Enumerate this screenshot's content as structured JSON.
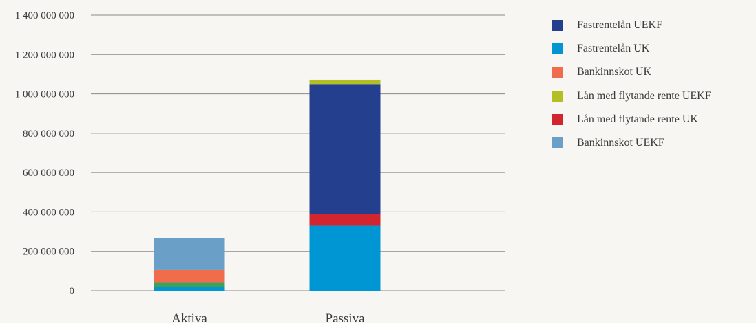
{
  "chart_data": {
    "type": "bar",
    "stacked": true,
    "categories": [
      "Aktiva",
      "Passiva"
    ],
    "y_ticks": [
      "0",
      "200 000 000",
      "400 000 000",
      "600 000 000",
      "800 000 000",
      "1 000 000 000",
      "1 200 000 000",
      "1 400 000 000"
    ],
    "ylim": [
      0,
      1400000000
    ],
    "grid": true,
    "legend_position": "right",
    "series": [
      {
        "name": "Bankinnskot UEKF",
        "color": "#6a9fc7",
        "values": [
          163000000,
          0
        ]
      },
      {
        "name": "Lån med flytande rente UK",
        "color": "#d3252f",
        "values": [
          0,
          60000000
        ]
      },
      {
        "name": "Lån med flytande rente UEKF",
        "color": "#b4bf24",
        "values": [
          0,
          22000000
        ]
      },
      {
        "name": "Bankinnskot UK",
        "color": "#ef6c4c",
        "values": [
          65000000,
          0
        ]
      },
      {
        "name": "Fastrentelån UK",
        "color": "#0096d4",
        "values": [
          20000000,
          330000000
        ]
      },
      {
        "name": "Fastrentelån UEKF",
        "color": "#253f8f",
        "values": [
          0,
          660000000
        ]
      }
    ],
    "extra_segments": [
      {
        "category": "Aktiva",
        "color": "#3da15a",
        "value": 20000000,
        "after_series": "Fastrentelån UK"
      }
    ],
    "stack_order": {
      "Aktiva": [
        "Fastrentelån UK",
        "*extra*",
        "Bankinnskot UK",
        "Bankinnskot UEKF"
      ],
      "Passiva": [
        "Fastrentelån UK",
        "Lån med flytande rente UK",
        "Fastrentelån UEKF",
        "Lån med flytande rente UEKF"
      ]
    },
    "legend_order": [
      "Fastrentelån UEKF",
      "Fastrentelån UK",
      "Bankinnskot UK",
      "Lån med flytande rente UEKF",
      "Lån med flytande rente UK",
      "Bankinnskot UEKF"
    ]
  }
}
